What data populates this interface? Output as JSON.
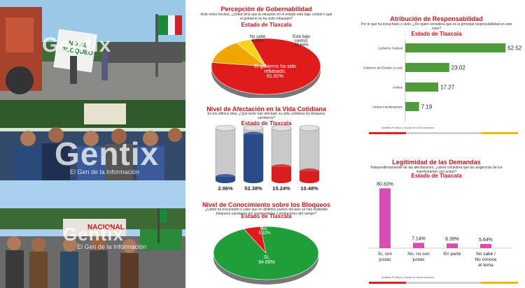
{
  "watermark": {
    "brand": "Gentix",
    "tagline": "El Gen de la Información"
  },
  "photos": {
    "top": {
      "banner_text": "NO AL BLOQUEO"
    },
    "bottom": {
      "banner_text": "NACIONAL"
    }
  },
  "gobernabilidad": {
    "title": "Percepción de Gobernabilidad",
    "question": "Ante estos hechos, ¿Usted diría que la situación en el estado está bajo control o que el gobierno se ha visto rebasado?",
    "state": "Estado de Tlaxcala",
    "slices": [
      {
        "label": "El gobierno ha sido rebasado,",
        "value_text": "81.82%",
        "value": 81.82,
        "color": "#e01b1b"
      },
      {
        "label": "Está bajo control,",
        "value_text": "13.64%",
        "value": 13.64,
        "color": "#f0a500"
      },
      {
        "label": "No sabe",
        "value_text": "4.55%",
        "value": 4.55,
        "color": "#f7d417"
      }
    ]
  },
  "afectacion": {
    "title": "Nivel de Afectación en la Vida Cotidiana",
    "question": "En los últimos días, ¿Qué tanto han afectado su vida cotidiana los bloqueos carreteros?",
    "state": "Estado de Tlaxcala",
    "bars": [
      {
        "value_text": "2.96%",
        "value": 2.96,
        "color": "#2a4a8a"
      },
      {
        "value_text": "52.38%",
        "value": 52.38,
        "color": "#2a4a8a"
      },
      {
        "value_text": "15.24%",
        "value": 15.24,
        "color": "#d81e1e"
      },
      {
        "value_text": "10.48%",
        "value": 10.48,
        "color": "#d81e1e"
      }
    ]
  },
  "conocimiento": {
    "title": "Nivel de Conocimiento sobre los Bloqueos",
    "question": "¿Usted ha escuchado o sabe que en distintos puntos del país se han realizado bloqueos carreteros por transportistas y productores del campo?",
    "state": "Estado de Tlaxcala",
    "slices": [
      {
        "label": "Sí,",
        "value_text": "94.68%",
        "value": 94.68,
        "color": "#1f9e3a"
      },
      {
        "label": "No,",
        "value_text": "5.32%",
        "value": 5.32,
        "color": "#e01b1b"
      }
    ]
  },
  "responsabilidad": {
    "title": "Atribución de Responsabilidad",
    "question": "Por lo que ha escuchado o visto, ¿De quién considera que es la principal responsabilidad en este caso?",
    "state": "Estado de Tlaxcala",
    "bars": [
      {
        "label": "Gobierno Federal",
        "value_text": "52.52",
        "value": 52.52
      },
      {
        "label": "Gobierno del Estado (Local)",
        "value_text": "23.02",
        "value": 23.02
      },
      {
        "label": "Ambos",
        "value_text": "17.27",
        "value": 17.27
      },
      {
        "label": "Ambos manifestantes",
        "value_text": "7.19",
        "value": 7.19
      }
    ],
    "color": "#4f9a3a",
    "footer": "Análisis Político y Social de la Información"
  },
  "legitimidad": {
    "title": "Legitimidad de las Demandas",
    "question": "Independientemente de las afectaciones, ¿usted considera que las exigencias de los manifestantes son justas?",
    "state": "Estado de Tlaxcala",
    "bars": [
      {
        "label": "Sí, son justas",
        "value_text": "80.83%",
        "value": 80.83
      },
      {
        "label": "No, no son justas",
        "value_text": "7.14%",
        "value": 7.14
      },
      {
        "label": "En parte",
        "value_text": "6.39%",
        "value": 6.39
      },
      {
        "label": "No sabe / No conoce el tema",
        "value_text": "5.64%",
        "value": 5.64
      }
    ],
    "color": "#d64fb0",
    "footer": "Análisis Político y Social de la Información"
  }
}
